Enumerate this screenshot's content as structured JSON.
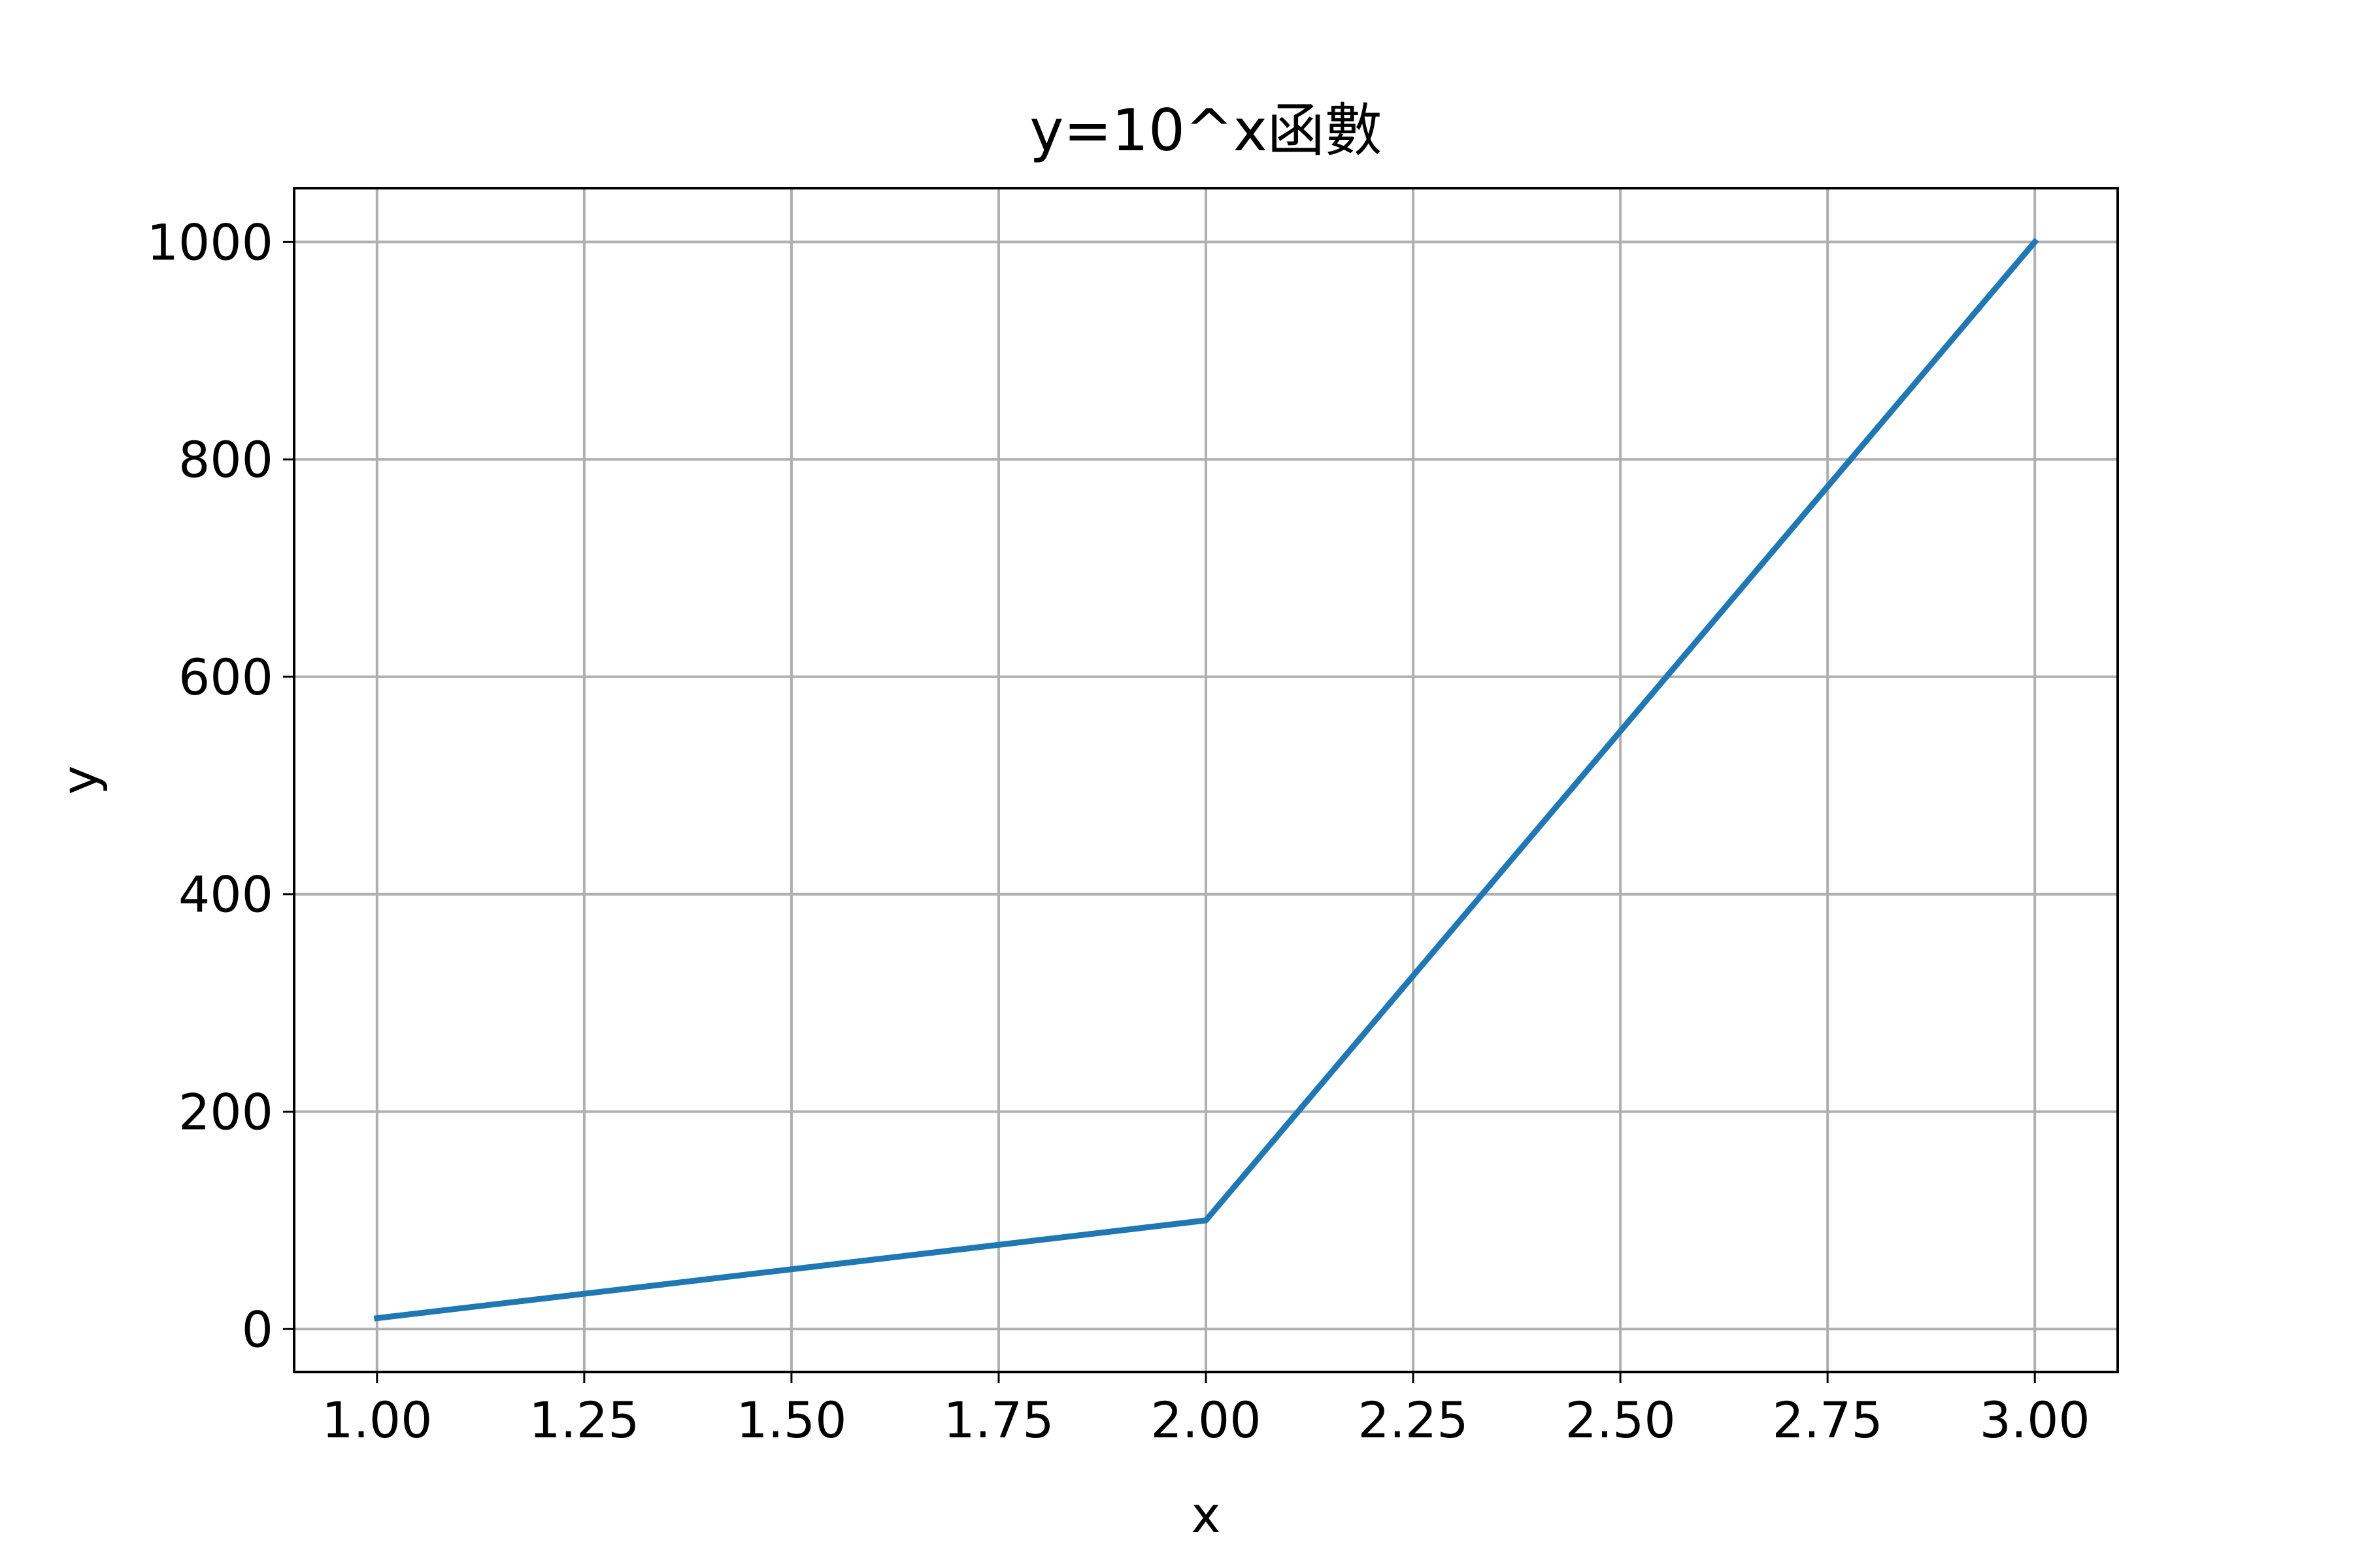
{
  "chart_data": {
    "type": "line",
    "title": "y=10^x函數",
    "xlabel": "x",
    "ylabel": "y",
    "x": [
      1,
      2,
      3
    ],
    "series": [
      {
        "values": [
          10,
          100,
          1000
        ],
        "color": "#1f77b4"
      }
    ],
    "xlim": [
      0.9,
      3.1
    ],
    "ylim": [
      -39.5,
      1049.5
    ],
    "xticks": [
      1.0,
      1.25,
      1.5,
      1.75,
      2.0,
      2.25,
      2.5,
      2.75,
      3.0
    ],
    "xtick_labels": [
      "1.00",
      "1.25",
      "1.50",
      "1.75",
      "2.00",
      "2.25",
      "2.50",
      "2.75",
      "3.00"
    ],
    "yticks": [
      0,
      200,
      400,
      600,
      800,
      1000
    ],
    "ytick_labels": [
      "0",
      "200",
      "400",
      "600",
      "800",
      "1000"
    ],
    "grid": true,
    "grid_color": "#b0b0b0"
  }
}
